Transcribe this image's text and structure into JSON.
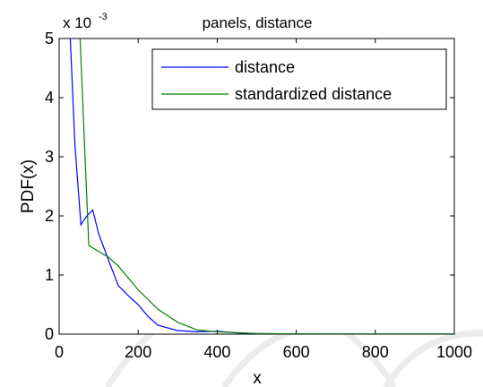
{
  "chart_data": {
    "type": "line",
    "title": "panels, distance",
    "xlabel": "x",
    "ylabel": "PDF(x)",
    "y_exponent_base": "x 10",
    "y_exponent_power": "-3",
    "xlim": [
      0,
      1000
    ],
    "ylim": [
      0,
      5
    ],
    "xticks": [
      0,
      200,
      400,
      600,
      800,
      1000
    ],
    "yticks": [
      0,
      1,
      2,
      3,
      4,
      5
    ],
    "xtick_labels": [
      "0",
      "200",
      "400",
      "600",
      "800",
      "1000"
    ],
    "ytick_labels": [
      "0",
      "1",
      "2",
      "3",
      "4",
      "5"
    ],
    "grid": false,
    "legend_position": "top-right",
    "series": [
      {
        "name": "distance",
        "color": "#0000ff",
        "x": [
          25,
          40,
          55,
          70,
          85,
          100,
          125,
          150,
          175,
          200,
          225,
          250,
          300,
          350,
          400,
          450,
          500,
          600,
          700,
          800,
          900,
          1000
        ],
        "y": [
          5.5,
          3.2,
          1.85,
          2.0,
          2.1,
          1.7,
          1.25,
          0.82,
          0.65,
          0.5,
          0.3,
          0.15,
          0.06,
          0.04,
          0.05,
          0.02,
          0.01,
          0.005,
          0.003,
          0.002,
          0.001,
          0.001
        ]
      },
      {
        "name": "standardized distance",
        "color": "#008000",
        "x": [
          50,
          75,
          100,
          125,
          150,
          200,
          250,
          300,
          350,
          400,
          500,
          600,
          700,
          800,
          900,
          1000
        ],
        "y": [
          5.5,
          1.5,
          1.4,
          1.3,
          1.15,
          0.75,
          0.42,
          0.2,
          0.07,
          0.04,
          0.01,
          0.005,
          0.003,
          0.002,
          0.001,
          0.001
        ]
      }
    ]
  }
}
